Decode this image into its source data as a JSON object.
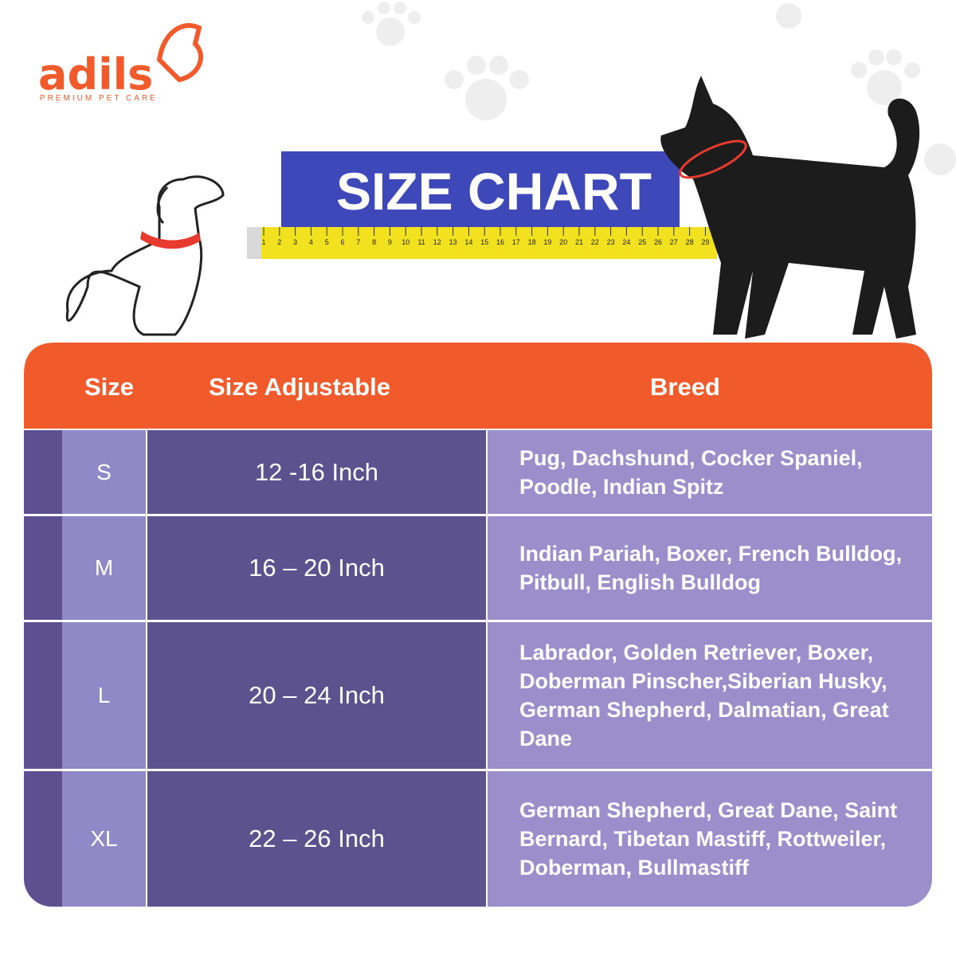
{
  "logo": {
    "name": "adils",
    "tagline": "PREMIUM PET CARE"
  },
  "title": "SIZE CHART",
  "ruler": {
    "labels": [
      1,
      2,
      3,
      4,
      5,
      6,
      7,
      8,
      9,
      10,
      11,
      12,
      13,
      14,
      15,
      16,
      17,
      18,
      19,
      20,
      21,
      22,
      23,
      24,
      25,
      26,
      27,
      28,
      29
    ]
  },
  "table": {
    "headers": [
      "Size",
      "Size Adjustable",
      "Breed"
    ],
    "rows": [
      [
        "S",
        "12 -16 Inch",
        "Pug, Dachshund, Cocker Spaniel, Poodle, Indian Spitz"
      ],
      [
        "M",
        "16 – 20 Inch",
        "Indian Pariah, Boxer, French Bulldog, Pitbull, English Bulldog"
      ],
      [
        "L",
        "20 – 24 Inch",
        "Labrador, Golden Retriever, Boxer, Doberman Pinscher,Siberian Husky, German Shepherd, Dalmatian, Great Dane"
      ],
      [
        "XL",
        "22 – 26 Inch",
        "German Shepherd, Great Dane, Saint Bernard, Tibetan Mastiff, Rottweiler, Doberman, Bullmastiff"
      ]
    ]
  }
}
